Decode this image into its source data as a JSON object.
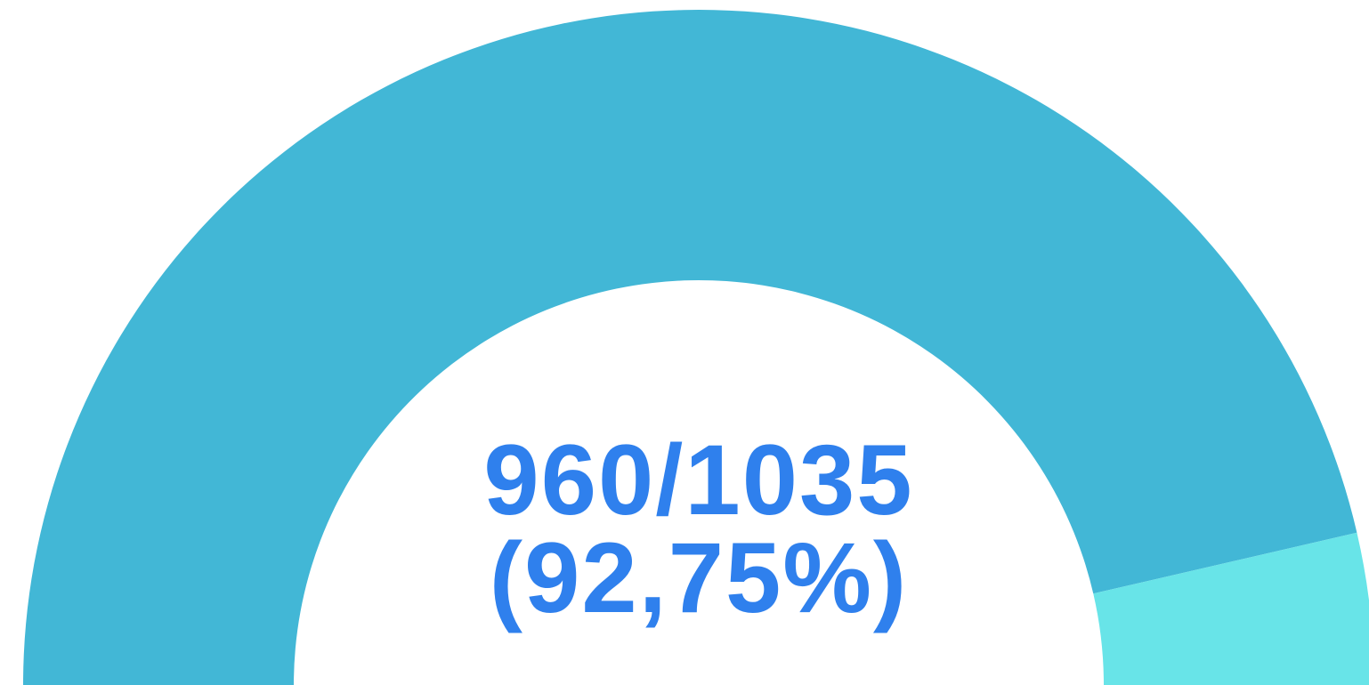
{
  "chart_data": {
    "type": "gauge",
    "value": 960,
    "max": 1035,
    "value_label": "960/1035",
    "percent_label": "(92,75%)",
    "color": "#42b7d6",
    "remainder_color": "#68e4e8",
    "label_color": "#2f80ed"
  }
}
